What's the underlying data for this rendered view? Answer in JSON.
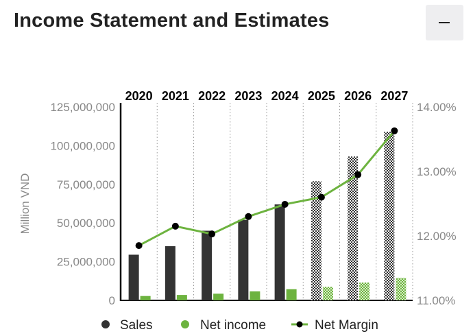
{
  "header": {
    "title": "Income Statement and Estimates",
    "collapse_icon": "minus-icon"
  },
  "chart_data": {
    "type": "bar",
    "title": "",
    "categories": [
      "2020",
      "2021",
      "2022",
      "2023",
      "2024",
      "2025",
      "2026",
      "2027"
    ],
    "estimated_from_index": 5,
    "series": [
      {
        "name": "Sales",
        "type": "bar",
        "axis": "left",
        "color": "#333333",
        "values": [
          29500000,
          35000000,
          45000000,
          52000000,
          62000000,
          77000000,
          93000000,
          109000000
        ]
      },
      {
        "name": "Net income",
        "type": "bar",
        "axis": "left",
        "color": "#6db33f",
        "values": [
          2800000,
          3500000,
          4300000,
          5800000,
          7200000,
          8700000,
          11500000,
          14500000
        ]
      },
      {
        "name": "Net Margin",
        "type": "line",
        "axis": "right",
        "color": "#6db33f",
        "values": [
          11.85,
          12.15,
          12.03,
          12.3,
          12.49,
          12.6,
          12.95,
          13.63
        ]
      }
    ],
    "ylabel": "Million VND",
    "left_axis": {
      "min": 0,
      "max": 125000000,
      "ticks": [
        "0",
        "25,000,000",
        "50,000,000",
        "75,000,000",
        "100,000,000",
        "125,000,000"
      ]
    },
    "right_axis": {
      "min": 11,
      "max": 14,
      "ticks": [
        "11.00%",
        "12.00%",
        "13.00%",
        "14.00%"
      ]
    },
    "grid": "vertical-dotted",
    "legend": "bottom"
  }
}
